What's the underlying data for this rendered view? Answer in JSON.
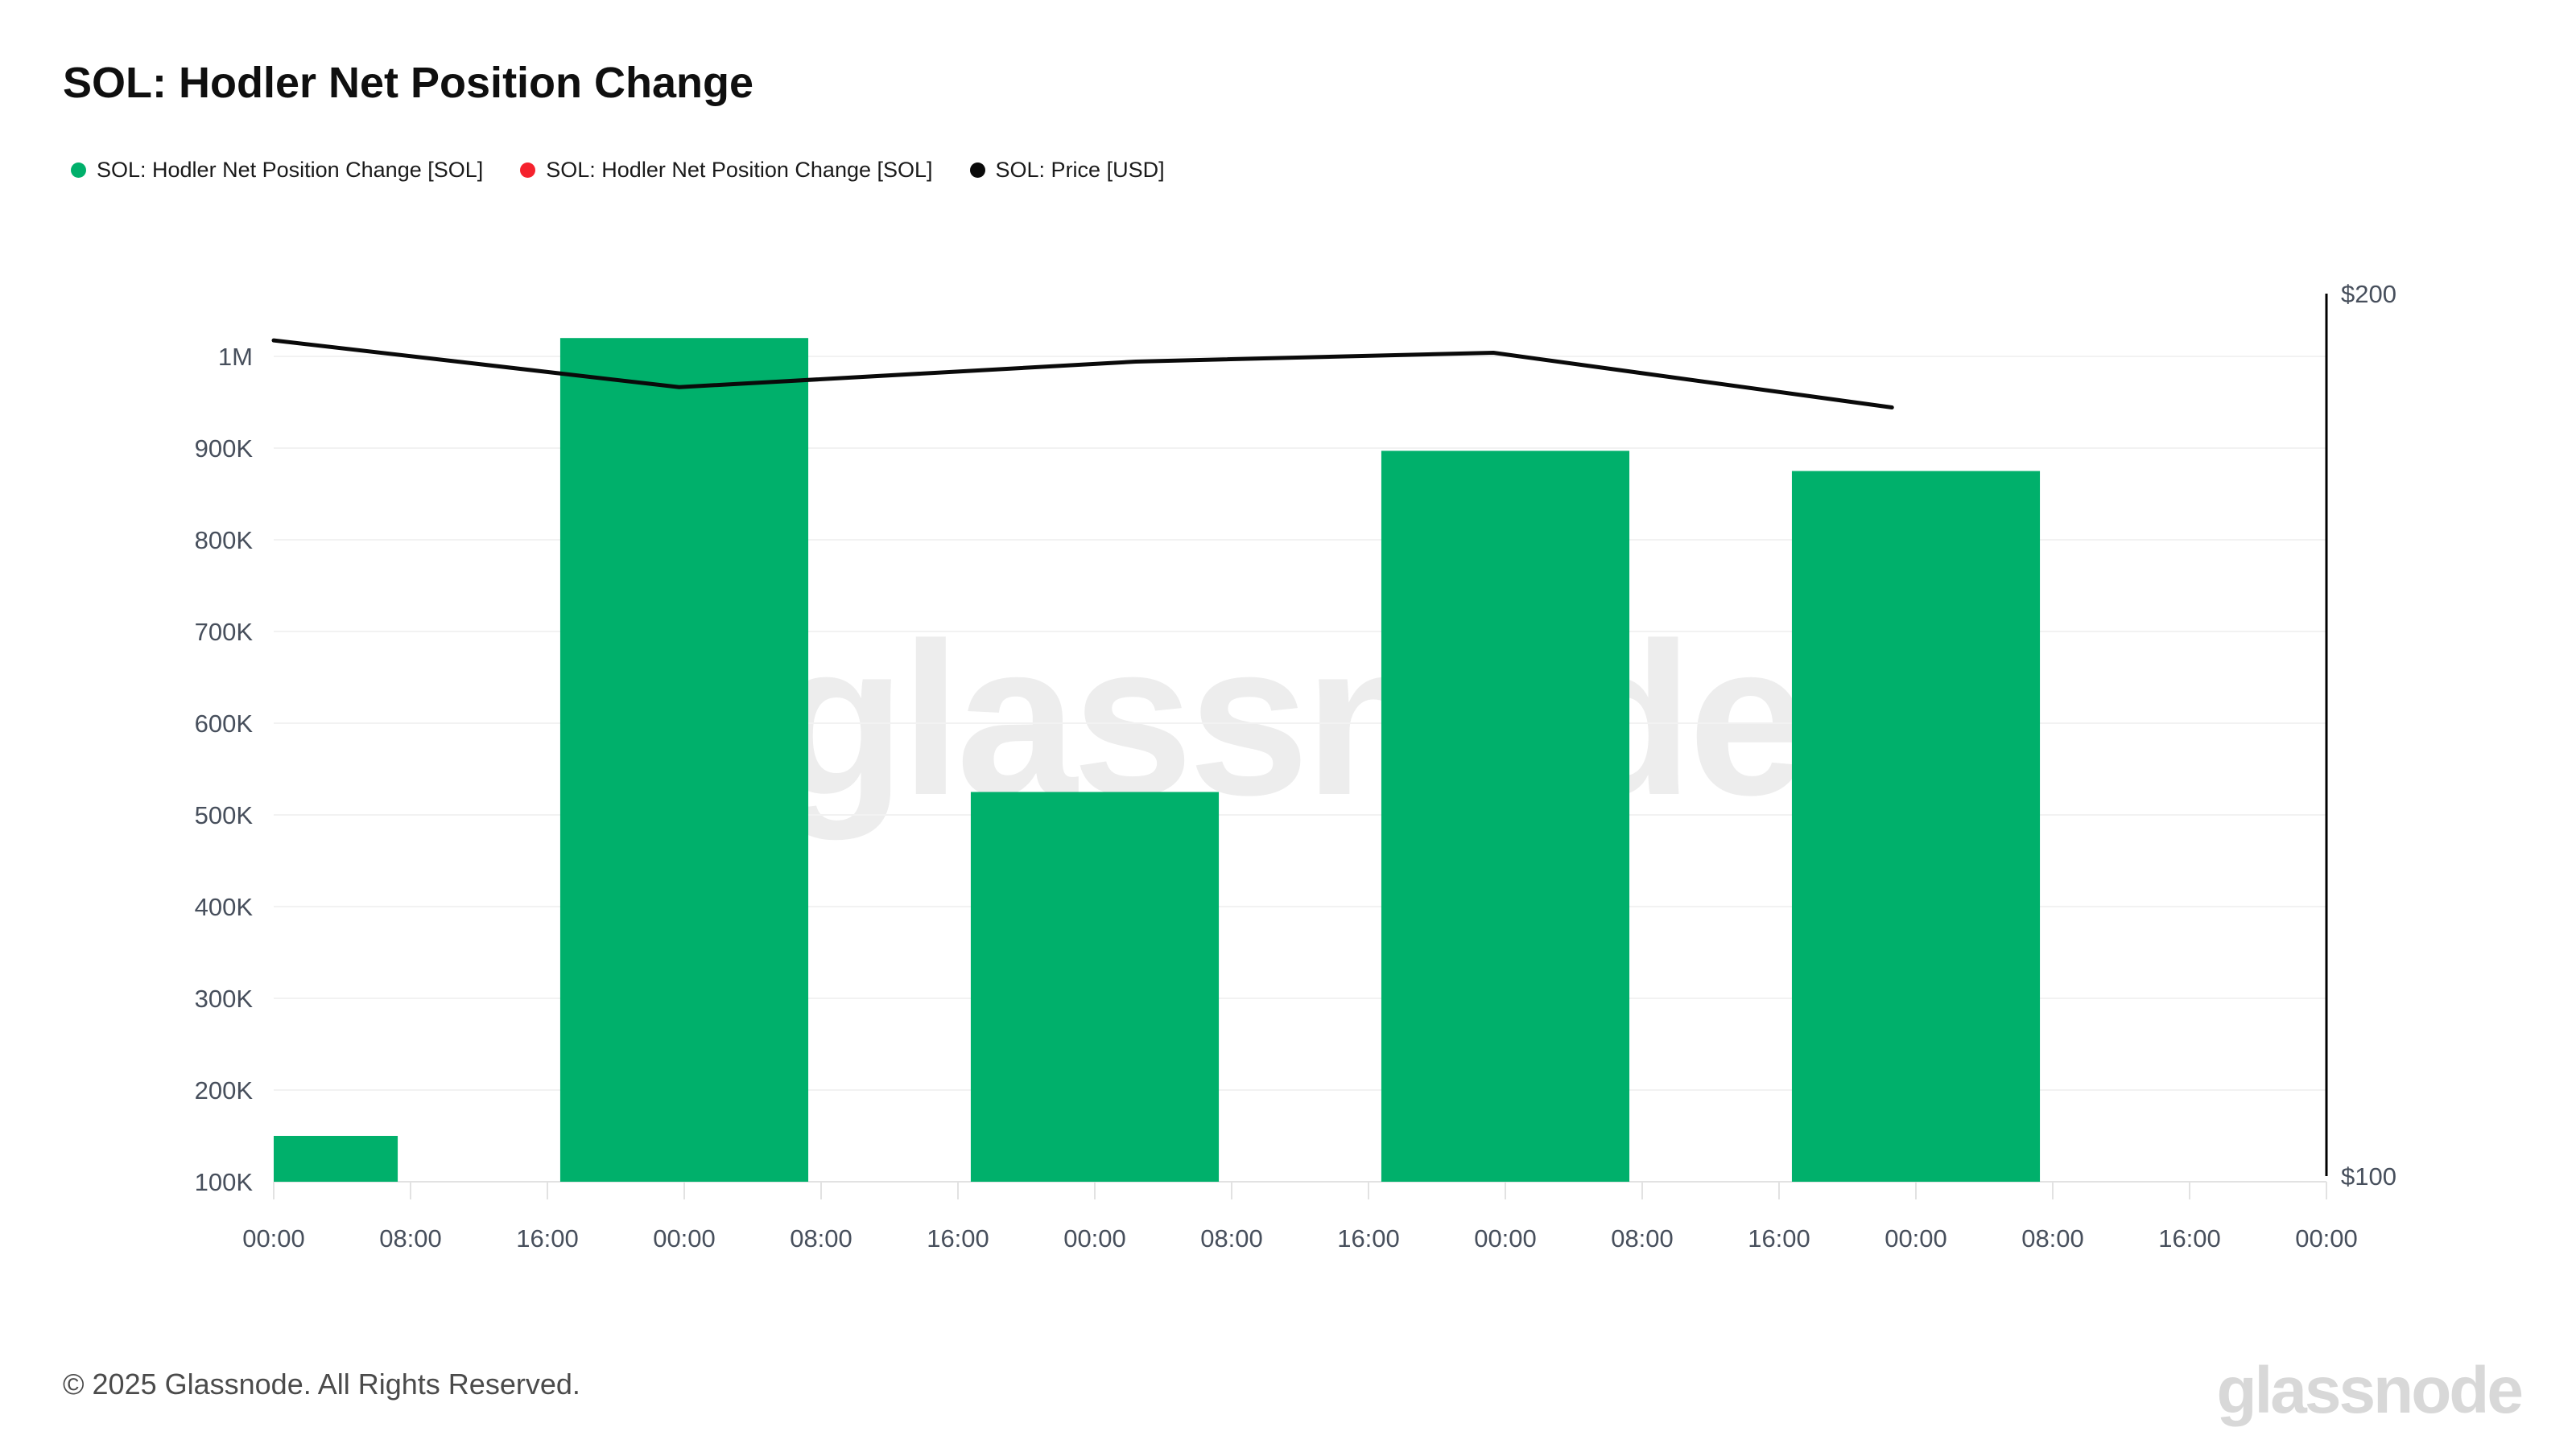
{
  "page": {
    "title": "SOL: Hodler Net Position Change",
    "watermark": "glassnode",
    "footer_copyright": "© 2025 Glassnode. All Rights Reserved.",
    "brand_logo": "glassnode"
  },
  "legend": {
    "items": [
      {
        "label": "SOL: Hodler Net Position Change [SOL]",
        "color": "#00B06B"
      },
      {
        "label": "SOL: Hodler Net Position Change [SOL]",
        "color": "#F5222D"
      },
      {
        "label": "SOL: Price [USD]",
        "color": "#0A0A0A"
      }
    ]
  },
  "chart_data": {
    "type": "bar",
    "subtype": "bar-line-combo-time-series",
    "title": "SOL: Hodler Net Position Change",
    "grid": "horizontal",
    "legend_position": "top-left",
    "x_axis": {
      "tick_labels": [
        "00:00",
        "08:00",
        "16:00",
        "00:00",
        "08:00",
        "16:00",
        "00:00",
        "08:00",
        "16:00",
        "00:00",
        "08:00",
        "16:00",
        "00:00",
        "08:00",
        "16:00",
        "00:00"
      ],
      "tick_interval_hours": 8,
      "span_hours": 120
    },
    "left_axis": {
      "unit": "SOL",
      "min": 100000,
      "max": 1050000,
      "tick_values": [
        100000,
        200000,
        300000,
        400000,
        500000,
        600000,
        700000,
        800000,
        900000,
        1000000
      ],
      "tick_labels": [
        "100K",
        "200K",
        "300K",
        "400K",
        "500K",
        "600K",
        "700K",
        "800K",
        "900K",
        "1M"
      ]
    },
    "right_axis": {
      "unit": "USD",
      "min": 100,
      "max": 200,
      "tick_values": [
        100,
        200
      ],
      "tick_labels": [
        "$100",
        "$200"
      ]
    },
    "series": [
      {
        "name": "SOL: Hodler Net Position Change [SOL]",
        "type": "bar",
        "color": "#00B06B",
        "bar_width_hours": 14.5,
        "center_hours": [
          0,
          24,
          48,
          72,
          96
        ],
        "values": [
          150000,
          1020000,
          525000,
          897000,
          875000
        ]
      },
      {
        "name": "SOL: Hodler Net Position Change [SOL]",
        "type": "bar",
        "color": "#F5222D",
        "center_hours": [],
        "values": []
      },
      {
        "name": "SOL: Price [USD]",
        "type": "line",
        "color": "#0A0A0A",
        "points_hours": [
          0,
          23.7,
          50.4,
          71.3,
          94.6
        ],
        "points_usd": [
          194.7,
          189.4,
          192.3,
          193.3,
          187.1
        ]
      }
    ]
  }
}
